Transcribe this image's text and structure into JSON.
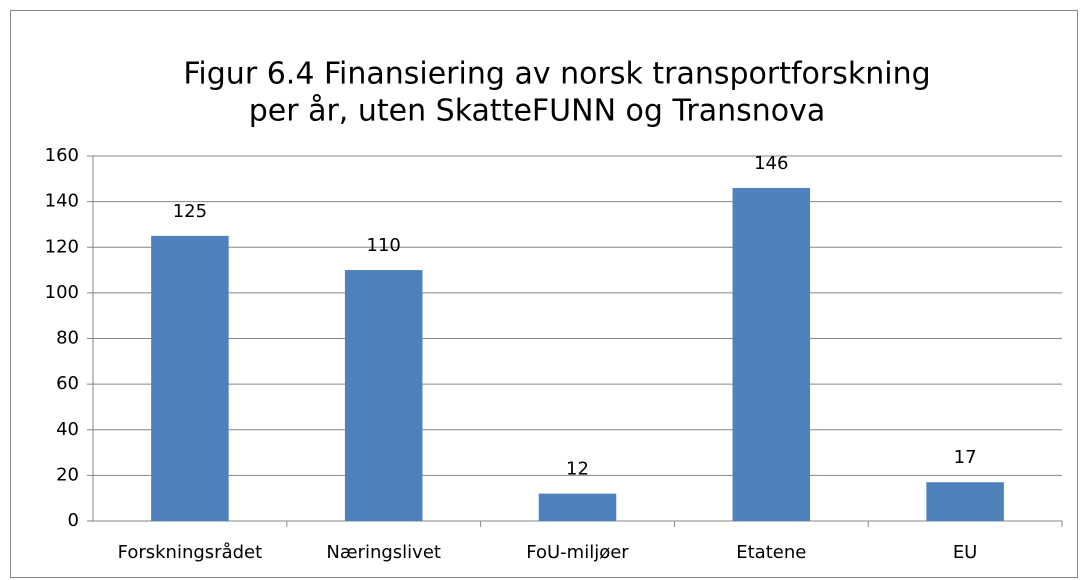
{
  "chart_data": {
    "type": "bar",
    "title": [
      "Figur 6.4 Finansiering av norsk transportforskning",
      "per år, uten SkatteFUNN og Transnova"
    ],
    "categories": [
      "Forskningsrådet",
      "Næringslivet",
      "FoU-miljøer",
      "Etatene",
      "EU"
    ],
    "values": [
      125,
      110,
      12,
      146,
      17
    ],
    "color": "#4f81bd",
    "ylim": [
      0,
      160
    ],
    "yticks": [
      0,
      20,
      40,
      60,
      80,
      100,
      120,
      140,
      160
    ],
    "grid": true
  }
}
